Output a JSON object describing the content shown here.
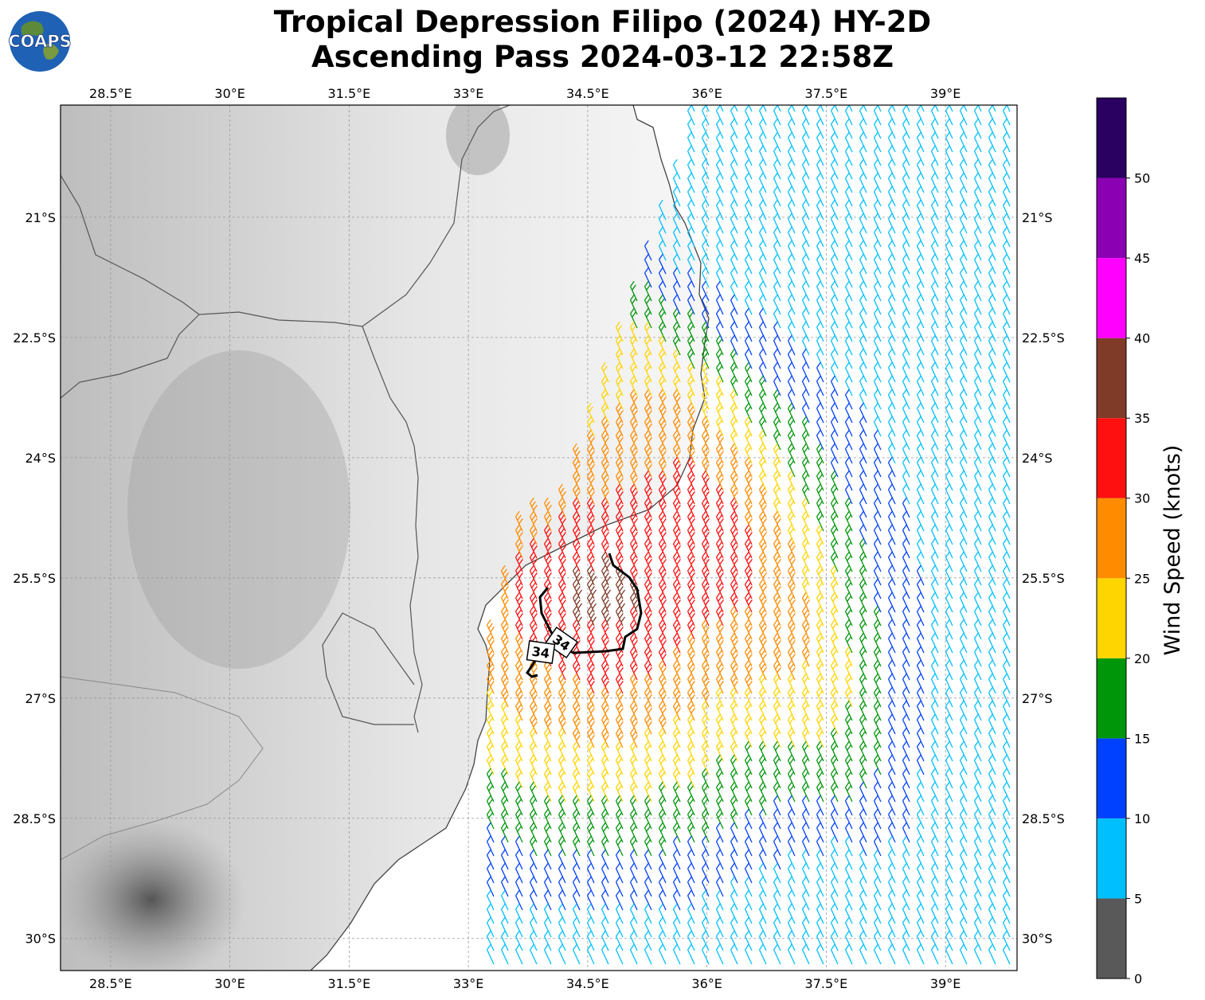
{
  "title": {
    "line1": "Tropical Depression Filipo (2024) HY-2D",
    "line2": "Ascending Pass 2024-03-12 22:58Z"
  },
  "logo": {
    "text": "COAPS",
    "icon": "globe-icon"
  },
  "map": {
    "lon_range": [
      27.87,
      39.9
    ],
    "lat_range": [
      -30.4,
      -19.6
    ],
    "lon_ticks": [
      "28.5°E",
      "30°E",
      "31.5°E",
      "33°E",
      "34.5°E",
      "36°E",
      "37.5°E",
      "39°E"
    ],
    "lon_tick_values": [
      28.5,
      30,
      31.5,
      33,
      34.5,
      36,
      37.5,
      39
    ],
    "lat_ticks": [
      "21°S",
      "22.5°S",
      "24°S",
      "25.5°S",
      "27°S",
      "28.5°S",
      "30°S"
    ],
    "lat_tick_values": [
      -21,
      -22.5,
      -24,
      -25.5,
      -27,
      -28.5,
      -30
    ],
    "grid": true,
    "contour_labels": [
      "34",
      "34"
    ]
  },
  "colorbar": {
    "label": "Wind Speed (knots)",
    "ticks": [
      "0",
      "5",
      "10",
      "15",
      "20",
      "25",
      "30",
      "35",
      "40",
      "45",
      "50"
    ],
    "colors": [
      "#595959",
      "#00bfff",
      "#0040ff",
      "#00960a",
      "#ffd500",
      "#ff8c00",
      "#ff1010",
      "#7f3b28",
      "#ff00ff",
      "#8c00b4",
      "#2a0060"
    ]
  }
}
